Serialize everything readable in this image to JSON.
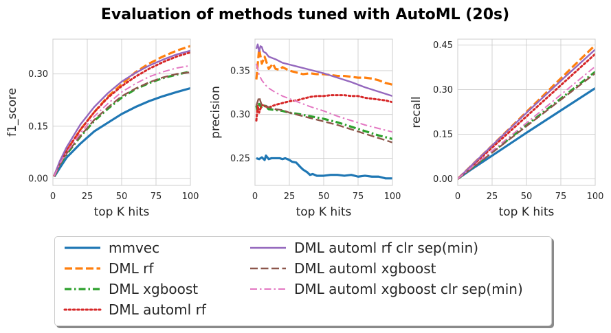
{
  "title": "Evaluation of methods tuned with AutoML (20s)",
  "chart_data": [
    {
      "type": "line",
      "title": "",
      "xlabel": "top K hits",
      "ylabel": "f1_score",
      "xlim": [
        0,
        100
      ],
      "ylim": [
        -0.02,
        0.4
      ],
      "xticks": [
        "0",
        "25",
        "50",
        "75",
        "100"
      ],
      "yticks": [
        "0.00",
        "0.15",
        "0.30"
      ],
      "ytick_values": [
        0.0,
        0.15,
        0.3
      ],
      "grid": true,
      "series": [
        {
          "name": "mmvec",
          "x": [
            1,
            5,
            10,
            20,
            30,
            40,
            50,
            60,
            70,
            80,
            90,
            100
          ],
          "values": [
            0.005,
            0.03,
            0.06,
            0.1,
            0.135,
            0.16,
            0.185,
            0.205,
            0.222,
            0.236,
            0.248,
            0.259
          ]
        },
        {
          "name": "DML rf",
          "x": [
            1,
            5,
            10,
            20,
            30,
            40,
            50,
            60,
            70,
            80,
            90,
            100
          ],
          "values": [
            0.008,
            0.045,
            0.08,
            0.14,
            0.19,
            0.235,
            0.27,
            0.305,
            0.33,
            0.35,
            0.367,
            0.38
          ]
        },
        {
          "name": "DML xgboost",
          "x": [
            1,
            5,
            10,
            20,
            30,
            40,
            50,
            60,
            70,
            80,
            90,
            100
          ],
          "values": [
            0.006,
            0.04,
            0.07,
            0.12,
            0.165,
            0.2,
            0.232,
            0.256,
            0.274,
            0.288,
            0.298,
            0.307
          ]
        },
        {
          "name": "DML automl rf",
          "x": [
            1,
            5,
            10,
            20,
            30,
            40,
            50,
            60,
            70,
            80,
            90,
            100
          ],
          "values": [
            0.008,
            0.045,
            0.08,
            0.14,
            0.19,
            0.232,
            0.265,
            0.292,
            0.315,
            0.334,
            0.35,
            0.362
          ]
        },
        {
          "name": "DML automl rf clr sep(min)",
          "x": [
            1,
            5,
            10,
            20,
            30,
            40,
            50,
            60,
            70,
            80,
            90,
            100
          ],
          "values": [
            0.009,
            0.05,
            0.09,
            0.155,
            0.205,
            0.245,
            0.278,
            0.303,
            0.324,
            0.341,
            0.356,
            0.367
          ]
        },
        {
          "name": "DML automl xgboost",
          "x": [
            1,
            5,
            10,
            20,
            30,
            40,
            50,
            60,
            70,
            80,
            90,
            100
          ],
          "values": [
            0.006,
            0.04,
            0.072,
            0.122,
            0.168,
            0.204,
            0.236,
            0.258,
            0.276,
            0.29,
            0.3,
            0.305
          ]
        },
        {
          "name": "DML automl xgboost clr sep(min)",
          "x": [
            1,
            5,
            10,
            20,
            30,
            40,
            50,
            60,
            70,
            80,
            90,
            100
          ],
          "values": [
            0.007,
            0.042,
            0.075,
            0.13,
            0.178,
            0.215,
            0.248,
            0.272,
            0.292,
            0.306,
            0.317,
            0.324
          ]
        }
      ]
    },
    {
      "type": "line",
      "title": "",
      "xlabel": "top K hits",
      "ylabel": "precision",
      "xlim": [
        0,
        100
      ],
      "ylim": [
        0.219,
        0.386
      ],
      "xticks": [
        "0",
        "25",
        "50",
        "75",
        "100"
      ],
      "yticks": [
        "0.25",
        "0.30",
        "0.35"
      ],
      "ytick_values": [
        0.25,
        0.3,
        0.35
      ],
      "grid": true,
      "series": [
        {
          "name": "mmvec",
          "x": [
            1,
            3,
            5,
            7,
            8,
            10,
            12,
            15,
            18,
            20,
            22,
            25,
            27,
            30,
            33,
            35,
            38,
            40,
            42,
            45,
            50,
            55,
            60,
            65,
            70,
            75,
            80,
            85,
            90,
            95,
            100
          ],
          "values": [
            0.25,
            0.249,
            0.251,
            0.248,
            0.253,
            0.249,
            0.25,
            0.25,
            0.25,
            0.249,
            0.25,
            0.248,
            0.246,
            0.245,
            0.24,
            0.237,
            0.234,
            0.231,
            0.232,
            0.23,
            0.23,
            0.231,
            0.231,
            0.23,
            0.231,
            0.229,
            0.23,
            0.229,
            0.229,
            0.227,
            0.227
          ]
        },
        {
          "name": "DML rf",
          "x": [
            1,
            3,
            5,
            7,
            10,
            13,
            15,
            18,
            20,
            25,
            30,
            35,
            40,
            45,
            50,
            55,
            60,
            65,
            70,
            75,
            80,
            85,
            90,
            95,
            100
          ],
          "values": [
            0.34,
            0.375,
            0.358,
            0.366,
            0.352,
            0.358,
            0.352,
            0.351,
            0.354,
            0.35,
            0.348,
            0.346,
            0.347,
            0.346,
            0.346,
            0.345,
            0.344,
            0.344,
            0.343,
            0.342,
            0.342,
            0.341,
            0.339,
            0.336,
            0.334
          ]
        },
        {
          "name": "DML xgboost",
          "x": [
            1,
            2,
            3,
            5,
            7,
            10,
            15,
            20,
            25,
            30,
            40,
            50,
            60,
            70,
            80,
            90,
            100
          ],
          "values": [
            0.31,
            0.302,
            0.312,
            0.307,
            0.31,
            0.306,
            0.305,
            0.304,
            0.302,
            0.301,
            0.298,
            0.295,
            0.291,
            0.286,
            0.281,
            0.276,
            0.272
          ]
        },
        {
          "name": "DML automl rf",
          "x": [
            1,
            2,
            3,
            5,
            8,
            10,
            15,
            20,
            25,
            30,
            35,
            40,
            45,
            50,
            55,
            60,
            65,
            70,
            75,
            80,
            85,
            90,
            95,
            100
          ],
          "values": [
            0.293,
            0.31,
            0.302,
            0.311,
            0.309,
            0.308,
            0.311,
            0.313,
            0.315,
            0.316,
            0.318,
            0.32,
            0.321,
            0.321,
            0.322,
            0.322,
            0.322,
            0.321,
            0.321,
            0.319,
            0.318,
            0.317,
            0.316,
            0.314
          ]
        },
        {
          "name": "DML automl rf clr sep(min)",
          "x": [
            1,
            2,
            3,
            4,
            5,
            6,
            8,
            10,
            15,
            20,
            25,
            30,
            40,
            50,
            60,
            70,
            80,
            90,
            100
          ],
          "values": [
            0.375,
            0.38,
            0.372,
            0.378,
            0.377,
            0.372,
            0.37,
            0.366,
            0.363,
            0.359,
            0.357,
            0.355,
            0.351,
            0.347,
            0.342,
            0.337,
            0.331,
            0.326,
            0.321
          ]
        },
        {
          "name": "DML automl xgboost",
          "x": [
            1,
            3,
            5,
            8,
            10,
            15,
            20,
            25,
            30,
            40,
            50,
            60,
            70,
            80,
            90,
            100
          ],
          "values": [
            0.31,
            0.32,
            0.31,
            0.31,
            0.308,
            0.306,
            0.305,
            0.302,
            0.3,
            0.296,
            0.292,
            0.288,
            0.283,
            0.278,
            0.273,
            0.268
          ]
        },
        {
          "name": "DML automl xgboost clr sep(min)",
          "x": [
            1,
            2,
            3,
            5,
            8,
            10,
            15,
            20,
            25,
            30,
            40,
            50,
            60,
            70,
            80,
            90,
            100
          ],
          "values": [
            0.358,
            0.352,
            0.345,
            0.339,
            0.333,
            0.33,
            0.325,
            0.321,
            0.318,
            0.315,
            0.309,
            0.304,
            0.298,
            0.293,
            0.288,
            0.284,
            0.28
          ]
        }
      ]
    },
    {
      "type": "line",
      "title": "",
      "xlabel": "top K hits",
      "ylabel": "recall",
      "xlim": [
        0,
        100
      ],
      "ylim": [
        -0.022,
        0.47
      ],
      "xticks": [
        "0",
        "25",
        "50",
        "75",
        "100"
      ],
      "yticks": [
        "0.00",
        "0.15",
        "0.30",
        "0.45"
      ],
      "ytick_values": [
        0.0,
        0.15,
        0.3,
        0.45
      ],
      "grid": true,
      "series": [
        {
          "name": "mmvec",
          "x": [
            0,
            10,
            25,
            50,
            75,
            100
          ],
          "values": [
            0.0,
            0.032,
            0.078,
            0.155,
            0.23,
            0.305
          ]
        },
        {
          "name": "DML rf",
          "x": [
            0,
            10,
            25,
            50,
            75,
            100
          ],
          "values": [
            0.0,
            0.045,
            0.112,
            0.225,
            0.338,
            0.45
          ]
        },
        {
          "name": "DML xgboost",
          "x": [
            0,
            10,
            25,
            50,
            75,
            100
          ],
          "values": [
            0.0,
            0.036,
            0.09,
            0.18,
            0.27,
            0.36
          ]
        },
        {
          "name": "DML automl rf",
          "x": [
            0,
            10,
            25,
            50,
            75,
            100
          ],
          "values": [
            0.0,
            0.042,
            0.105,
            0.21,
            0.315,
            0.42
          ]
        },
        {
          "name": "DML automl rf clr sep(min)",
          "x": [
            0,
            10,
            25,
            50,
            75,
            100
          ],
          "values": [
            0.0,
            0.045,
            0.112,
            0.222,
            0.33,
            0.435
          ]
        },
        {
          "name": "DML automl xgboost",
          "x": [
            0,
            10,
            25,
            50,
            75,
            100
          ],
          "values": [
            0.0,
            0.035,
            0.088,
            0.177,
            0.266,
            0.355
          ]
        },
        {
          "name": "DML automl xgboost clr sep(min)",
          "x": [
            0,
            10,
            25,
            50,
            75,
            100
          ],
          "values": [
            0.0,
            0.038,
            0.094,
            0.188,
            0.283,
            0.378
          ]
        }
      ]
    }
  ],
  "styles": {
    "mmvec": {
      "color": "#1f77b4",
      "dash": "solid",
      "width": 3.2
    },
    "DML rf": {
      "color": "#ff7f0e",
      "dash": "dashed",
      "width": 3.2
    },
    "DML xgboost": {
      "color": "#2ca02c",
      "dash": "dashdot",
      "width": 3.2
    },
    "DML automl rf": {
      "color": "#d62728",
      "dash": "dotted",
      "width": 3.0
    },
    "DML automl rf clr sep(min)": {
      "color": "#9467bd",
      "dash": "solid",
      "width": 2.4
    },
    "DML automl xgboost": {
      "color": "#8c564b",
      "dash": "dashed",
      "width": 2.4
    },
    "DML automl xgboost clr sep(min)": {
      "color": "#e377c2",
      "dash": "dashdot",
      "width": 2.0
    }
  },
  "legend": {
    "placement": "bottom-center",
    "items": [
      "mmvec",
      "DML rf",
      "DML xgboost",
      "DML automl rf",
      "DML automl rf clr sep(min)",
      "DML automl xgboost",
      "DML automl xgboost clr sep(min)"
    ]
  }
}
